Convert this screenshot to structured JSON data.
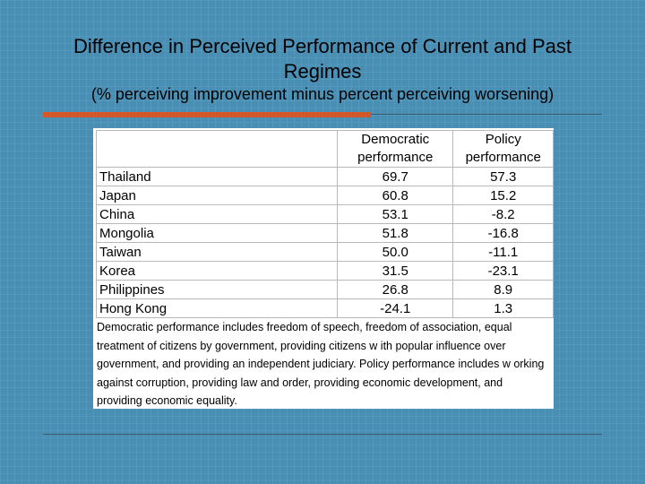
{
  "slide": {
    "title_line1": "Difference in Perceived Performance of Current and Past",
    "title_line2": "Regimes",
    "subtitle": "(% perceiving improvement minus percent perceiving worsening)"
  },
  "table": {
    "headers": [
      {
        "line1": "Democratic",
        "line2": "performance"
      },
      {
        "line1": "Policy",
        "line2": "performance"
      }
    ],
    "rows": [
      {
        "country": "Thailand",
        "democratic": "69.7",
        "policy": "57.3"
      },
      {
        "country": "Japan",
        "democratic": "60.8",
        "policy": "15.2"
      },
      {
        "country": "China",
        "democratic": "53.1",
        "policy": "-8.2"
      },
      {
        "country": "Mongolia",
        "democratic": "51.8",
        "policy": "-16.8"
      },
      {
        "country": "Taiwan",
        "democratic": "50.0",
        "policy": "-11.1"
      },
      {
        "country": "Korea",
        "democratic": "31.5",
        "policy": "-23.1"
      },
      {
        "country": "Philippines",
        "democratic": "26.8",
        "policy": "8.9"
      },
      {
        "country": "Hong Kong",
        "democratic": "-24.1",
        "policy": "1.3"
      }
    ],
    "note": "Democratic performance includes freedom of speech, freedom of association, equal treatment of citizens by government, providing citizens w ith popular influence over government, and providing an independent judiciary.  Policy performance includes w orking against corruption, providing law  and order, providing economic development, and providing economic equality."
  },
  "colors": {
    "background": "#4a8fb3",
    "accent_rule": "#d2582a"
  }
}
